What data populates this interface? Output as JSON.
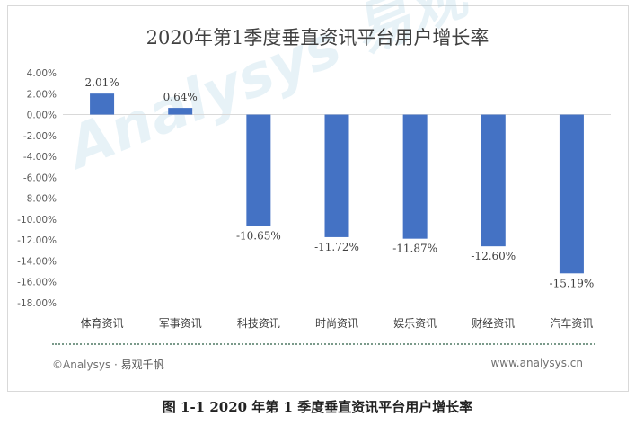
{
  "chart_data": {
    "type": "bar",
    "title": "2020年第1季度垂直资讯平台用户增长率",
    "categories": [
      "体育资讯",
      "军事资讯",
      "科技资讯",
      "时尚资讯",
      "娱乐资讯",
      "财经资讯",
      "汽车资讯"
    ],
    "values": [
      2.01,
      0.64,
      -10.65,
      -11.72,
      -11.87,
      -12.6,
      -15.19
    ],
    "value_labels": [
      "2.01%",
      "0.64%",
      "-10.65%",
      "-11.72%",
      "-11.87%",
      "-12.60%",
      "-15.19%"
    ],
    "ylim": [
      -18,
      4
    ],
    "yticks": [
      4,
      2,
      0,
      -2,
      -4,
      -6,
      -8,
      -10,
      -12,
      -14,
      -16,
      -18
    ],
    "ytick_labels": [
      "4.00%",
      "2.00%",
      "0.00%",
      "-2.00%",
      "-4.00%",
      "-6.00%",
      "-8.00%",
      "-10.00%",
      "-12.00%",
      "-14.00%",
      "-16.00%",
      "-18.00%"
    ],
    "xlabel": "",
    "ylabel": "",
    "grid": false,
    "bar_color": "#4472c4"
  },
  "watermark": "Analysys 易观",
  "footer": {
    "left_brand": "©Analysys · ",
    "left_brand_cn": "易观千帆",
    "right_url": "www.analysys.cn"
  },
  "caption": "图 1-1  2020 年第 1 季度垂直资讯平台用户增长率"
}
